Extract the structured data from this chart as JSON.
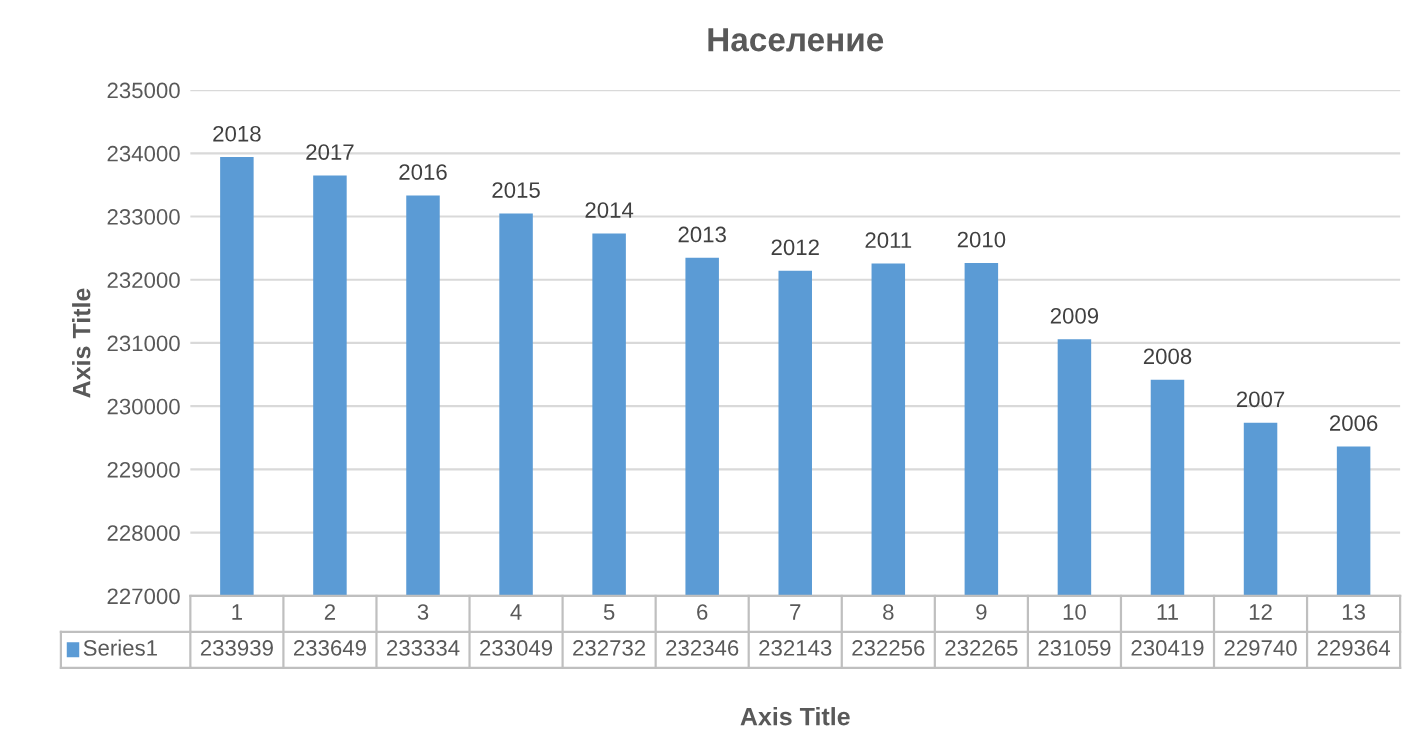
{
  "chart_data": {
    "type": "bar",
    "title": "Население",
    "xlabel": "Axis Title",
    "ylabel": "Axis Title",
    "categories": [
      "1",
      "2",
      "3",
      "4",
      "5",
      "6",
      "7",
      "8",
      "9",
      "10",
      "11",
      "12",
      "13"
    ],
    "series": [
      {
        "name": "Series1",
        "color": "#5b9bd5",
        "values": [
          233939,
          233649,
          233334,
          233049,
          232732,
          232346,
          232143,
          232256,
          232265,
          231059,
          230419,
          229740,
          229364
        ]
      }
    ],
    "ylim": [
      227000,
      235000
    ],
    "yticks": [
      227000,
      228000,
      229000,
      230000,
      231000,
      232000,
      233000,
      234000,
      235000
    ],
    "grid": "y",
    "legend": "bottom",
    "data_labels": true,
    "annotations": [
      {
        "text": "2018",
        "x": "1",
        "y": 233939
      },
      {
        "text": "2017",
        "x": "2",
        "y": 233649
      },
      {
        "text": "2016",
        "x": "3",
        "y": 233334
      },
      {
        "text": "2015",
        "x": "4",
        "y": 233049
      },
      {
        "text": "2014",
        "x": "5",
        "y": 232732
      },
      {
        "text": "2013",
        "x": "6",
        "y": 232346
      },
      {
        "text": "2012",
        "x": "7",
        "y": 232143
      },
      {
        "text": "2011",
        "x": "8",
        "y": 232256
      },
      {
        "text": "2010",
        "x": "9",
        "y": 232265
      },
      {
        "text": "2009",
        "x": "10",
        "y": 231059
      },
      {
        "text": "2008",
        "x": "11",
        "y": 230419
      },
      {
        "text": "2007",
        "x": "12",
        "y": 229740
      },
      {
        "text": "2006",
        "x": "13",
        "y": 229364
      }
    ]
  }
}
